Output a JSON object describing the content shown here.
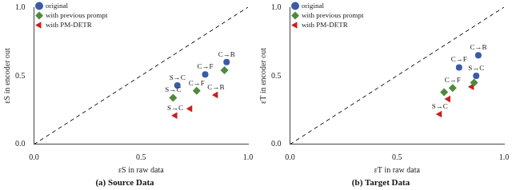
{
  "chart_data": [
    {
      "type": "scatter",
      "title": "(a) Source Data",
      "x_label": "εS in raw data",
      "y_label": "εS in encoder out",
      "xlim": [
        0,
        1
      ],
      "ylim": [
        0,
        1
      ],
      "xticks": [
        {
          "value": 0,
          "label": "0.0"
        },
        {
          "value": 0.5,
          "label": "0.5"
        },
        {
          "value": 1,
          "label": "1.0"
        }
      ],
      "yticks": [
        {
          "value": 0,
          "label": "0.0"
        },
        {
          "value": 0.5,
          "label": "0.5"
        },
        {
          "value": 1,
          "label": "1.0"
        }
      ],
      "grid": false,
      "legend": "upper left",
      "series": [
        {
          "type": "line",
          "color": "#000000",
          "line_style": "dashed",
          "x": [
            0,
            1
          ],
          "values": [
            0,
            1
          ]
        },
        {
          "name": "original",
          "color": "#3b5aa8",
          "marker": "circle",
          "x": [
            0.67,
            0.8,
            0.9
          ],
          "values": [
            0.43,
            0.51,
            0.6
          ],
          "labels": [
            "S→C",
            "C→F",
            "C→B"
          ]
        },
        {
          "name": "with previous prompt",
          "color": "#4f8a3c",
          "marker": "diamond",
          "x": [
            0.65,
            0.76,
            0.89
          ],
          "values": [
            0.34,
            0.39,
            0.54
          ],
          "labels": [
            "S→C",
            "C→F",
            null
          ]
        },
        {
          "name": "with PM-DETR",
          "color": "#c8201e",
          "marker": "triangle-left",
          "x": [
            0.66,
            0.73,
            0.85
          ],
          "values": [
            0.21,
            0.26,
            0.36
          ],
          "labels": [
            "S→C",
            null,
            "C→B"
          ]
        }
      ]
    },
    {
      "type": "scatter",
      "title": "(b) Target Data",
      "x_label": "εT in raw data",
      "y_label": "εT in encoder out",
      "xlim": [
        0,
        1
      ],
      "ylim": [
        0,
        1
      ],
      "xticks": [
        {
          "value": 0,
          "label": "0.0"
        },
        {
          "value": 0.5,
          "label": "0.5"
        },
        {
          "value": 1,
          "label": "1.0"
        }
      ],
      "yticks": [
        {
          "value": 0,
          "label": "0.0"
        },
        {
          "value": 0.5,
          "label": "0.5"
        },
        {
          "value": 1,
          "label": "1.0"
        }
      ],
      "grid": false,
      "legend": "upper left",
      "series": [
        {
          "type": "line",
          "color": "#000000",
          "line_style": "dashed",
          "x": [
            0,
            1
          ],
          "values": [
            0,
            1
          ]
        },
        {
          "name": "original",
          "color": "#3b5aa8",
          "marker": "circle",
          "x": [
            0.87,
            0.79,
            0.88
          ],
          "values": [
            0.5,
            0.56,
            0.65
          ],
          "labels": [
            "S→C",
            "C→F",
            "C→B"
          ]
        },
        {
          "name": "with previous prompt",
          "color": "#4f8a3c",
          "marker": "diamond",
          "x": [
            0.72,
            0.76,
            0.86
          ],
          "values": [
            0.38,
            0.41,
            0.45
          ],
          "labels": [
            null,
            "C→F",
            null
          ]
        },
        {
          "name": "with PM-DETR",
          "color": "#c8201e",
          "marker": "triangle-left",
          "x": [
            0.7,
            0.74,
            0.85
          ],
          "values": [
            0.22,
            0.33,
            0.42
          ],
          "labels": [
            "S→C",
            null,
            null
          ]
        }
      ]
    }
  ]
}
